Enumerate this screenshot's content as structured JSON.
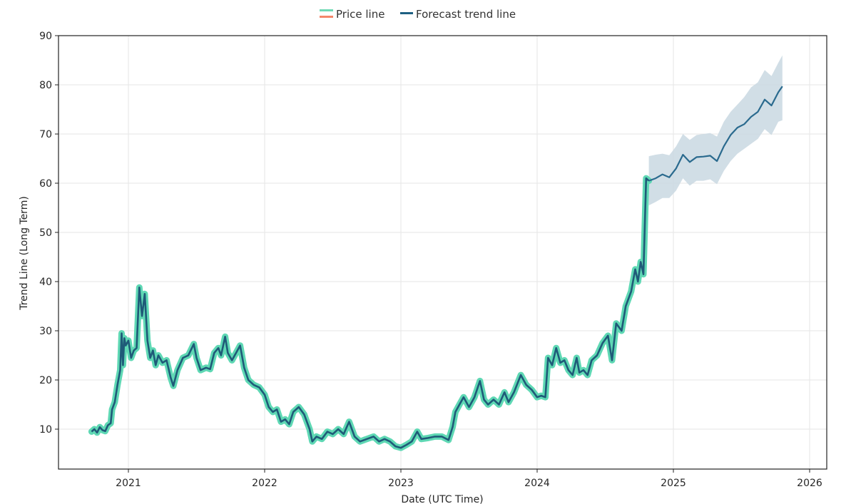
{
  "legend": {
    "items": [
      {
        "label": "Price line",
        "colors": [
          "#6fd9b5",
          "#f4876b"
        ]
      },
      {
        "label": "Forecast trend line",
        "color": "#1d5f82"
      }
    ]
  },
  "colors": {
    "price_band": "#5fd8b4",
    "price_line": "#1f5a78",
    "forecast_line": "#2a6a8e",
    "forecast_band": "#c6d6e0",
    "grid": "#e6e6e6",
    "axis": "#222222"
  },
  "chart_data": {
    "type": "line",
    "title": "",
    "xlabel": "Date (UTC Time)",
    "ylabel": "Trend Line (Long Term)",
    "xlim": [
      2020.5,
      2026.13
    ],
    "ylim": [
      2,
      90
    ],
    "x_ticks": [
      "2021",
      "2022",
      "2023",
      "2024",
      "2025",
      "2026"
    ],
    "y_ticks": [
      "10",
      "20",
      "30",
      "40",
      "50",
      "60",
      "70",
      "80",
      "90"
    ],
    "grid": true,
    "legend_position": "top-center",
    "series": [
      {
        "name": "Price line",
        "points": [
          [
            2020.73,
            9.5
          ],
          [
            2020.75,
            10.0
          ],
          [
            2020.77,
            9.3
          ],
          [
            2020.79,
            10.4
          ],
          [
            2020.81,
            9.8
          ],
          [
            2020.83,
            9.6
          ],
          [
            2020.85,
            10.8
          ],
          [
            2020.87,
            11.2
          ],
          [
            2020.88,
            14.0
          ],
          [
            2020.9,
            15.5
          ],
          [
            2020.92,
            19.0
          ],
          [
            2020.94,
            22.0
          ],
          [
            2020.95,
            29.5
          ],
          [
            2020.96,
            23.0
          ],
          [
            2020.97,
            28.5
          ],
          [
            2020.98,
            27.0
          ],
          [
            2021.0,
            28.0
          ],
          [
            2021.02,
            24.5
          ],
          [
            2021.04,
            26.0
          ],
          [
            2021.06,
            26.5
          ],
          [
            2021.08,
            38.8
          ],
          [
            2021.1,
            33.0
          ],
          [
            2021.12,
            37.5
          ],
          [
            2021.14,
            28.0
          ],
          [
            2021.16,
            24.5
          ],
          [
            2021.18,
            26.0
          ],
          [
            2021.2,
            23.0
          ],
          [
            2021.22,
            25.0
          ],
          [
            2021.25,
            23.5
          ],
          [
            2021.28,
            24.0
          ],
          [
            2021.31,
            20.5
          ],
          [
            2021.33,
            18.8
          ],
          [
            2021.36,
            22.0
          ],
          [
            2021.4,
            24.5
          ],
          [
            2021.44,
            25.0
          ],
          [
            2021.48,
            27.3
          ],
          [
            2021.5,
            24.5
          ],
          [
            2021.53,
            22.0
          ],
          [
            2021.57,
            22.5
          ],
          [
            2021.6,
            22.2
          ],
          [
            2021.63,
            25.5
          ],
          [
            2021.66,
            26.5
          ],
          [
            2021.68,
            25.0
          ],
          [
            2021.71,
            28.8
          ],
          [
            2021.73,
            25.5
          ],
          [
            2021.76,
            24.0
          ],
          [
            2021.79,
            25.5
          ],
          [
            2021.82,
            27.0
          ],
          [
            2021.85,
            22.5
          ],
          [
            2021.88,
            20.0
          ],
          [
            2021.92,
            19.0
          ],
          [
            2021.96,
            18.5
          ],
          [
            2022.0,
            17.0
          ],
          [
            2022.03,
            14.5
          ],
          [
            2022.06,
            13.5
          ],
          [
            2022.09,
            14.0
          ],
          [
            2022.12,
            11.5
          ],
          [
            2022.15,
            12.0
          ],
          [
            2022.18,
            11.0
          ],
          [
            2022.21,
            13.5
          ],
          [
            2022.25,
            14.5
          ],
          [
            2022.29,
            13.0
          ],
          [
            2022.33,
            10.0
          ],
          [
            2022.35,
            7.5
          ],
          [
            2022.38,
            8.5
          ],
          [
            2022.42,
            8.0
          ],
          [
            2022.46,
            9.5
          ],
          [
            2022.5,
            9.0
          ],
          [
            2022.54,
            10.0
          ],
          [
            2022.58,
            9.0
          ],
          [
            2022.62,
            11.5
          ],
          [
            2022.66,
            8.5
          ],
          [
            2022.7,
            7.5
          ],
          [
            2022.75,
            8.0
          ],
          [
            2022.8,
            8.5
          ],
          [
            2022.84,
            7.5
          ],
          [
            2022.88,
            8.0
          ],
          [
            2022.92,
            7.5
          ],
          [
            2022.96,
            6.5
          ],
          [
            2023.0,
            6.2
          ],
          [
            2023.04,
            6.8
          ],
          [
            2023.08,
            7.5
          ],
          [
            2023.12,
            9.5
          ],
          [
            2023.15,
            8.0
          ],
          [
            2023.2,
            8.2
          ],
          [
            2023.25,
            8.5
          ],
          [
            2023.3,
            8.5
          ],
          [
            2023.35,
            7.8
          ],
          [
            2023.38,
            10.5
          ],
          [
            2023.4,
            13.5
          ],
          [
            2023.43,
            15.0
          ],
          [
            2023.46,
            16.5
          ],
          [
            2023.5,
            14.5
          ],
          [
            2023.54,
            16.5
          ],
          [
            2023.58,
            19.8
          ],
          [
            2023.61,
            16.0
          ],
          [
            2023.64,
            15.0
          ],
          [
            2023.68,
            16.0
          ],
          [
            2023.72,
            15.0
          ],
          [
            2023.76,
            17.5
          ],
          [
            2023.79,
            15.5
          ],
          [
            2023.83,
            17.5
          ],
          [
            2023.88,
            21.0
          ],
          [
            2023.92,
            19.0
          ],
          [
            2023.96,
            18.0
          ],
          [
            2024.0,
            16.5
          ],
          [
            2024.03,
            16.8
          ],
          [
            2024.06,
            16.5
          ],
          [
            2024.08,
            24.5
          ],
          [
            2024.11,
            23.0
          ],
          [
            2024.14,
            26.5
          ],
          [
            2024.17,
            23.5
          ],
          [
            2024.2,
            24.0
          ],
          [
            2024.23,
            22.0
          ],
          [
            2024.26,
            21.0
          ],
          [
            2024.29,
            24.5
          ],
          [
            2024.31,
            21.5
          ],
          [
            2024.34,
            22.0
          ],
          [
            2024.37,
            21.0
          ],
          [
            2024.4,
            24.0
          ],
          [
            2024.44,
            25.0
          ],
          [
            2024.48,
            27.5
          ],
          [
            2024.52,
            29.0
          ],
          [
            2024.55,
            24.0
          ],
          [
            2024.58,
            31.5
          ],
          [
            2024.62,
            30.0
          ],
          [
            2024.65,
            35.0
          ],
          [
            2024.69,
            38.0
          ],
          [
            2024.72,
            42.5
          ],
          [
            2024.74,
            40.0
          ],
          [
            2024.76,
            44.0
          ],
          [
            2024.78,
            41.5
          ],
          [
            2024.8,
            61.0
          ],
          [
            2024.82,
            60.5
          ]
        ]
      },
      {
        "name": "Forecast trend line",
        "points": [
          [
            2024.82,
            60.5
          ],
          [
            2024.87,
            61.0
          ],
          [
            2024.92,
            61.8
          ],
          [
            2024.97,
            61.2
          ],
          [
            2025.02,
            63.0
          ],
          [
            2025.07,
            65.8
          ],
          [
            2025.12,
            64.3
          ],
          [
            2025.17,
            65.3
          ],
          [
            2025.22,
            65.4
          ],
          [
            2025.27,
            65.6
          ],
          [
            2025.32,
            64.5
          ],
          [
            2025.37,
            67.5
          ],
          [
            2025.42,
            69.8
          ],
          [
            2025.47,
            71.3
          ],
          [
            2025.52,
            72.0
          ],
          [
            2025.57,
            73.5
          ],
          [
            2025.62,
            74.5
          ],
          [
            2025.67,
            77.0
          ],
          [
            2025.72,
            75.8
          ],
          [
            2025.77,
            78.5
          ],
          [
            2025.8,
            79.7
          ]
        ],
        "upper": [
          [
            2024.82,
            65.5
          ],
          [
            2024.87,
            65.8
          ],
          [
            2024.92,
            66.0
          ],
          [
            2024.97,
            65.7
          ],
          [
            2025.02,
            67.5
          ],
          [
            2025.07,
            70.0
          ],
          [
            2025.12,
            68.8
          ],
          [
            2025.17,
            69.8
          ],
          [
            2025.22,
            70.0
          ],
          [
            2025.27,
            70.2
          ],
          [
            2025.32,
            69.5
          ],
          [
            2025.37,
            72.5
          ],
          [
            2025.42,
            74.5
          ],
          [
            2025.47,
            76.0
          ],
          [
            2025.52,
            77.5
          ],
          [
            2025.57,
            79.5
          ],
          [
            2025.62,
            80.5
          ],
          [
            2025.67,
            83.0
          ],
          [
            2025.72,
            81.8
          ],
          [
            2025.77,
            84.5
          ],
          [
            2025.8,
            86.0
          ]
        ],
        "lower": [
          [
            2024.82,
            55.5
          ],
          [
            2024.87,
            56.2
          ],
          [
            2024.92,
            57.0
          ],
          [
            2024.97,
            57.0
          ],
          [
            2025.02,
            58.5
          ],
          [
            2025.07,
            61.0
          ],
          [
            2025.12,
            59.5
          ],
          [
            2025.17,
            60.5
          ],
          [
            2025.22,
            60.5
          ],
          [
            2025.27,
            60.8
          ],
          [
            2025.32,
            59.8
          ],
          [
            2025.37,
            62.5
          ],
          [
            2025.42,
            64.5
          ],
          [
            2025.47,
            66.0
          ],
          [
            2025.52,
            67.0
          ],
          [
            2025.57,
            68.0
          ],
          [
            2025.62,
            69.0
          ],
          [
            2025.67,
            71.0
          ],
          [
            2025.72,
            69.8
          ],
          [
            2025.77,
            72.5
          ],
          [
            2025.8,
            72.8
          ]
        ]
      }
    ]
  }
}
